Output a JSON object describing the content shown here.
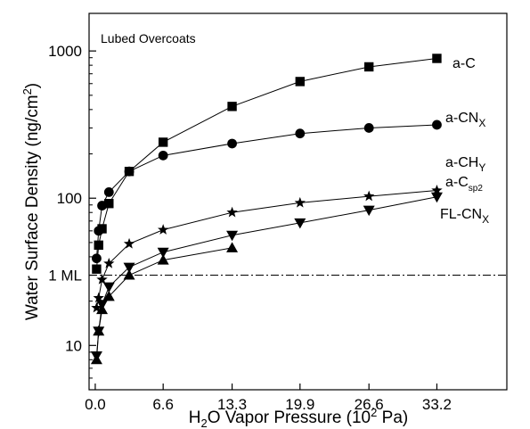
{
  "chart_data": {
    "type": "line",
    "panel_title": "Lubed Overcoats",
    "xlabel": "H₂O Vapor Pressure (10² Pa)",
    "ylabel": "Water Surface Density (ng/cm²)",
    "y_scale": "log",
    "ylim": [
      5,
      1800
    ],
    "xlim": [
      -0.6,
      40
    ],
    "x_ticks": [
      0.0,
      6.6,
      13.3,
      19.9,
      26.6,
      33.2
    ],
    "x_tick_labels": [
      "0.0",
      "6.6",
      "13.3",
      "19.9",
      "26.6",
      "33.2"
    ],
    "y_ticks": [
      10,
      100,
      1000
    ],
    "y_tick_labels": [
      "10",
      "100",
      "1000"
    ],
    "reference_line": {
      "label": "1 ML",
      "y": 30
    },
    "grid": false,
    "series": [
      {
        "name": "a-C",
        "marker": "square",
        "x": [
          0.13,
          0.33,
          0.66,
          1.33,
          3.3,
          6.6,
          13.3,
          19.9,
          26.6,
          33.2
        ],
        "y": [
          33,
          48,
          62,
          92,
          152,
          240,
          420,
          620,
          780,
          890
        ]
      },
      {
        "name": "a-CNₓ",
        "label_main": "a-CN",
        "label_sub": "X",
        "marker": "circle",
        "x": [
          0.13,
          0.33,
          0.66,
          1.33,
          3.3,
          6.6,
          13.3,
          19.9,
          26.6,
          33.2
        ],
        "y": [
          39,
          60,
          89,
          110,
          152,
          195,
          235,
          275,
          300,
          315
        ]
      },
      {
        "name": "a-CH_Y",
        "label_main": "a-CH",
        "label_sub": "Y",
        "marker": "star",
        "x": [
          0.13,
          0.33,
          0.66,
          1.33,
          3.3,
          6.6,
          13.3,
          19.9,
          26.6,
          33.2
        ],
        "y": [
          18,
          21,
          28,
          36,
          49,
          61,
          80,
          93,
          103,
          113
        ]
      },
      {
        "name": "a-C_sp2",
        "label_main": "a-C",
        "label_sub": "sp2",
        "marker": "triangle-down",
        "x": [
          0.13,
          0.33,
          0.66,
          1.33,
          3.3,
          6.6,
          13.3,
          19.9,
          26.6,
          33.2
        ],
        "y": [
          8.5,
          12.5,
          19,
          25,
          34,
          43,
          56,
          68,
          83,
          102
        ]
      },
      {
        "name": "FL-CN_X",
        "label_main": "FL-CN",
        "label_sub": "X",
        "marker": "triangle-up",
        "x": [
          0.13,
          0.33,
          0.66,
          1.33,
          3.3,
          6.6,
          13.3
        ],
        "y": [
          8,
          12.5,
          17.5,
          21.5,
          30,
          38,
          46
        ]
      }
    ]
  }
}
